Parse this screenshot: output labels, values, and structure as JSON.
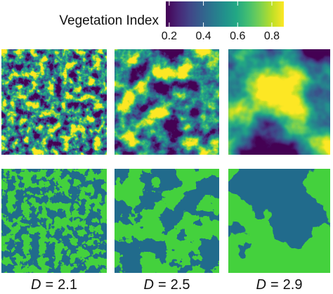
{
  "colorbar": {
    "label": "Vegetation Index",
    "lim": [
      0.18,
      0.87
    ],
    "ticks": [
      0.2,
      0.4,
      0.6,
      0.8
    ]
  },
  "panels": [
    {
      "variable": "D",
      "operator": "=",
      "value": 2.1
    },
    {
      "variable": "D",
      "operator": "=",
      "value": 2.5
    },
    {
      "variable": "D",
      "operator": "=",
      "value": 2.9
    }
  ]
}
